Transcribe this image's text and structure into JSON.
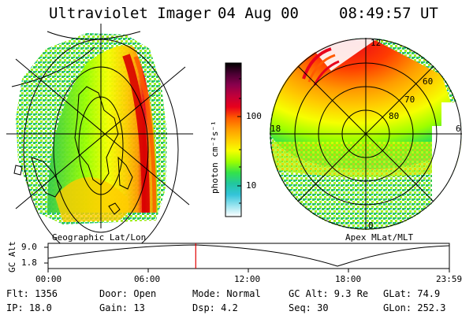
{
  "header": {
    "instrument": "Ultraviolet Imager",
    "date": "04 Aug 00",
    "time": "08:49:57 UT"
  },
  "colors": {
    "background": "#ffffff",
    "cursor": "#e00000"
  },
  "colorbar": {
    "unit_label": "photon cm⁻²s⁻¹",
    "ticks": [
      "100",
      "10"
    ],
    "stops": [
      "#000000",
      "#4b0033",
      "#8a004d",
      "#c0003a",
      "#e8001c",
      "#ff5a00",
      "#ff9a00",
      "#ffcc00",
      "#f6ff00",
      "#9cff00",
      "#33e24a",
      "#22c7a0",
      "#33c4d9",
      "#9ae4ef",
      "#ffffff"
    ]
  },
  "left_panel": {
    "label": "Geographic Lat/Lon"
  },
  "right_panel": {
    "label": "Apex MLat/MLT",
    "mlt_labels": {
      "top": "12",
      "left": "18",
      "right": "6",
      "bottom": "0"
    },
    "lat_labels": [
      "60",
      "70",
      "80"
    ]
  },
  "altitude_plot": {
    "ylabel": "GC Alt",
    "yticks": [
      "9.0",
      "1.8"
    ],
    "xticks": [
      "00:00",
      "06:00",
      "12:00",
      "18:00",
      "23:59"
    ],
    "cursor_time": "08:49:57"
  },
  "info": {
    "flt": "Flt: 1356",
    "ip": "IP: 18.0",
    "door": "Door: Open",
    "gain": "Gain: 13",
    "mode": "Mode: Normal",
    "dsp": "Dsp:     4.2",
    "gcalt": "GC Alt: 9.3 Re",
    "seq": "Seq: 30",
    "glat": "GLat:  74.9",
    "glon": "GLon: 252.3"
  }
}
